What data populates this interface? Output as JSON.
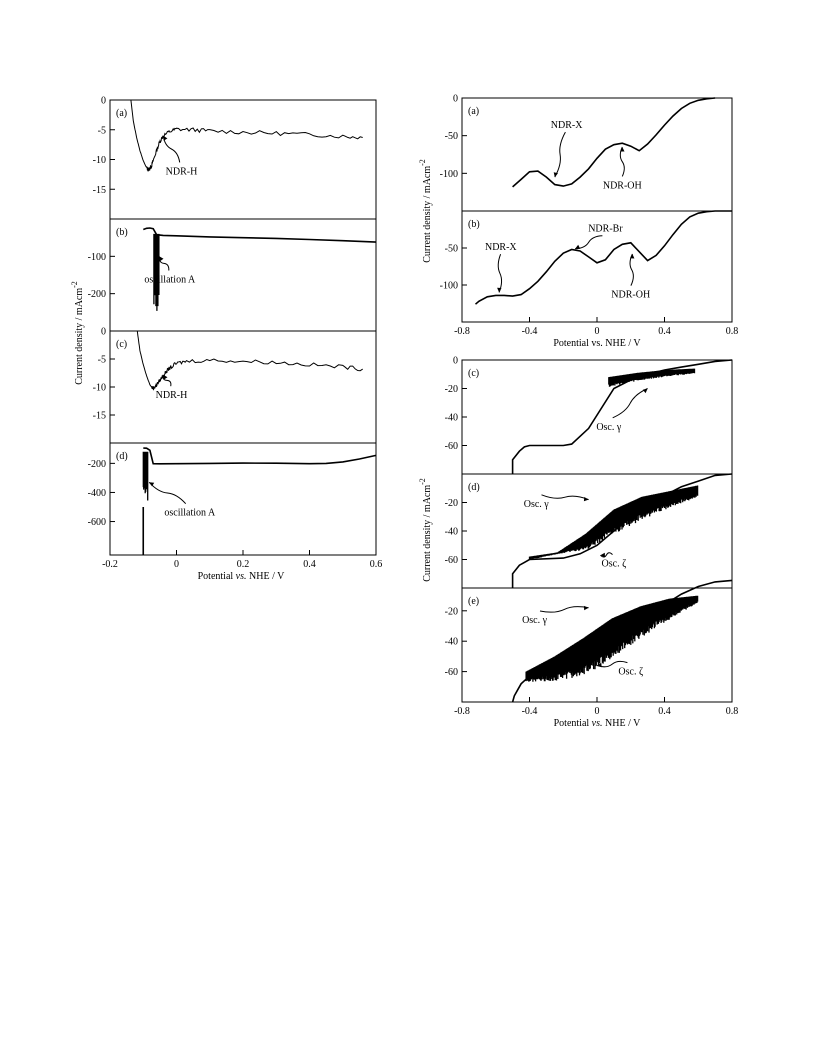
{
  "chart_data": [
    {
      "type": "line",
      "panel_label": "(a)",
      "x": [
        -0.137,
        -0.13,
        -0.12,
        -0.11,
        -0.1,
        -0.09,
        -0.085,
        -0.08,
        -0.075,
        -0.07,
        -0.06,
        -0.05,
        -0.04,
        -0.02,
        0.0,
        0.05,
        0.1,
        0.2,
        0.3,
        0.4,
        0.5,
        0.56
      ],
      "y": [
        0,
        -3.5,
        -6.3,
        -8.5,
        -10.2,
        -11.4,
        -11.7,
        -11.5,
        -11.0,
        -10.2,
        -8.5,
        -7.0,
        -6.0,
        -5.3,
        -4.9,
        -5.0,
        -5.2,
        -5.4,
        -5.6,
        -5.8,
        -6.1,
        -6.3
      ],
      "noise": 0.35,
      "xlim": [
        -0.2,
        0.6
      ],
      "ylim": [
        0,
        -20
      ],
      "yticks": [
        0,
        -5,
        -10,
        -15
      ],
      "annotations": [
        {
          "text": "NDR-H",
          "x": 0.015,
          "y": -12.5,
          "arrow_x": -0.04,
          "arrow_y": -6.0
        }
      ]
    },
    {
      "type": "line",
      "panel_label": "(b)",
      "x": [
        -0.1,
        -0.09,
        -0.08,
        -0.07,
        -0.06,
        -0.04,
        0.0,
        0.1,
        0.2,
        0.3,
        0.4,
        0.5,
        0.6
      ],
      "y": [
        -28,
        -25,
        -24,
        -26,
        -42,
        -44,
        -45,
        -48,
        -50,
        -52,
        -55,
        -58,
        -62
      ],
      "oscillation": {
        "x_from": -0.068,
        "x_to": -0.052,
        "y_from": -40,
        "y_to": -255,
        "density": 0.003
      },
      "xlim": [
        -0.2,
        0.6
      ],
      "ylim": [
        0,
        -300
      ],
      "yticks": [
        -100,
        -200
      ],
      "annotations": [
        {
          "text": "oscillation A",
          "x": -0.02,
          "y": -170,
          "arrow_x": -0.052,
          "arrow_y": -100
        }
      ]
    },
    {
      "type": "line",
      "panel_label": "(c)",
      "x": [
        -0.118,
        -0.11,
        -0.1,
        -0.09,
        -0.08,
        -0.075,
        -0.07,
        -0.065,
        -0.06,
        -0.05,
        -0.04,
        -0.03,
        -0.02,
        0.0,
        0.03,
        0.1,
        0.2,
        0.3,
        0.4,
        0.5,
        0.56
      ],
      "y": [
        0,
        -3.5,
        -6.0,
        -8.0,
        -9.6,
        -10.0,
        -10.2,
        -10.0,
        -9.6,
        -8.8,
        -8.0,
        -7.2,
        -6.6,
        -5.8,
        -5.4,
        -5.2,
        -5.4,
        -5.6,
        -6.0,
        -6.4,
        -6.8
      ],
      "noise": 0.35,
      "xlim": [
        -0.2,
        0.6
      ],
      "ylim": [
        0,
        -20
      ],
      "yticks": [
        0,
        -5,
        -10,
        -15
      ],
      "annotations": [
        {
          "text": "NDR-H",
          "x": -0.015,
          "y": -12.0,
          "arrow_x": -0.04,
          "arrow_y": -7.8
        }
      ]
    },
    {
      "type": "line",
      "panel_label": "(d)",
      "x": [
        -0.1,
        -0.09,
        -0.08,
        -0.07,
        -0.05,
        0.0,
        0.1,
        0.2,
        0.3,
        0.4,
        0.45,
        0.5,
        0.55,
        0.6
      ],
      "y": [
        -95,
        -96,
        -110,
        -202,
        -203,
        -202,
        -200,
        -198,
        -199,
        -202,
        -200,
        -190,
        -170,
        -145
      ],
      "oscillation": {
        "x_from": -0.1,
        "x_to": -0.085,
        "y_from": -120,
        "y_to": -500,
        "density": 0.0015
      },
      "baseline_drop": {
        "x": -0.1,
        "y_from": -500,
        "y_to": -830
      },
      "xlim": [
        -0.2,
        0.6
      ],
      "ylim": [
        -60,
        -830
      ],
      "yticks": [
        -200,
        -400,
        -600
      ],
      "xticks": [
        -0.2,
        0,
        0.2,
        0.4,
        0.6
      ],
      "annotations": [
        {
          "text": "oscillation A",
          "x": 0.04,
          "y": -560,
          "arrow_x": -0.082,
          "arrow_y": -330
        }
      ]
    },
    {
      "type": "line",
      "panel_label": "(a)",
      "x": [
        -0.5,
        -0.45,
        -0.4,
        -0.35,
        -0.3,
        -0.25,
        -0.2,
        -0.15,
        -0.1,
        -0.05,
        0.0,
        0.05,
        0.1,
        0.15,
        0.2,
        0.25,
        0.3,
        0.35,
        0.4,
        0.45,
        0.5,
        0.55,
        0.6,
        0.65,
        0.7
      ],
      "y": [
        -118,
        -108,
        -98,
        -97,
        -105,
        -115,
        -117,
        -114,
        -105,
        -94,
        -80,
        -68,
        -62,
        -60,
        -64,
        -70,
        -61,
        -49,
        -36,
        -24,
        -14,
        -7,
        -3,
        -1,
        0
      ],
      "xlim": [
        -0.8,
        0.8
      ],
      "ylim": [
        0,
        -150
      ],
      "yticks": [
        0,
        -50,
        -100
      ],
      "annotations": [
        {
          "text": "NDR-X",
          "x": -0.18,
          "y": -40,
          "arrow_x": -0.25,
          "arrow_y": -105
        },
        {
          "text": "NDR-OH",
          "x": 0.15,
          "y": -120,
          "arrow_x": 0.15,
          "arrow_y": -65
        }
      ]
    },
    {
      "type": "line",
      "panel_label": "(b)",
      "x": [
        -0.72,
        -0.7,
        -0.65,
        -0.6,
        -0.55,
        -0.5,
        -0.45,
        -0.4,
        -0.35,
        -0.3,
        -0.25,
        -0.2,
        -0.15,
        -0.1,
        -0.05,
        0.0,
        0.05,
        0.1,
        0.15,
        0.2,
        0.25,
        0.3,
        0.35,
        0.4,
        0.45,
        0.5,
        0.55,
        0.6,
        0.65,
        0.7,
        0.75,
        0.8
      ],
      "y": [
        -126,
        -122,
        -116,
        -114,
        -114,
        -115,
        -113,
        -105,
        -95,
        -82,
        -68,
        -57,
        -52,
        -54,
        -62,
        -70,
        -66,
        -52,
        -45,
        -43,
        -55,
        -67,
        -60,
        -47,
        -32,
        -18,
        -8,
        -3,
        -1,
        0,
        0,
        0
      ],
      "xlim": [
        -0.8,
        0.8
      ],
      "ylim": [
        0,
        -150
      ],
      "yticks": [
        -50,
        -100
      ],
      "xticks": [
        -0.8,
        -0.4,
        0,
        0.4,
        0.8
      ],
      "annotations": [
        {
          "text": "NDR-X",
          "x": -0.57,
          "y": -53,
          "arrow_x": -0.58,
          "arrow_y": -110
        },
        {
          "text": "NDR-Br",
          "x": 0.05,
          "y": -28,
          "arrow_x": -0.13,
          "arrow_y": -51
        },
        {
          "text": "NDR-OH",
          "x": 0.2,
          "y": -117,
          "arrow_x": 0.21,
          "arrow_y": -58
        }
      ]
    },
    {
      "type": "line",
      "panel_label": "(c)",
      "x": [
        -0.5,
        -0.5,
        -0.48,
        -0.46,
        -0.43,
        -0.4,
        -0.2,
        -0.15,
        -0.05,
        0.1,
        0.2,
        0.3,
        0.4,
        0.5,
        0.6,
        0.7,
        0.8
      ],
      "y": [
        -80,
        -70,
        -67,
        -64,
        -61,
        -60,
        -60,
        -59,
        -48,
        -20,
        -14,
        -10,
        -7,
        -5,
        -3,
        -1,
        0
      ],
      "oscillation": {
        "x_from": 0.07,
        "x_to": 0.58,
        "lower": [
          -18,
          -14,
          -11,
          -9
        ],
        "upper": [
          -12,
          -9,
          -7,
          -6
        ],
        "density": 0.004
      },
      "xlim": [
        -0.8,
        0.8
      ],
      "ylim": [
        0,
        -80
      ],
      "yticks": [
        0,
        -20,
        -40,
        -60
      ],
      "annotations": [
        {
          "text": "Osc. γ",
          "x": 0.07,
          "y": -49,
          "arrow_x": 0.3,
          "arrow_y": -20
        }
      ]
    },
    {
      "type": "line",
      "panel_label": "(d)",
      "x": [
        -0.5,
        -0.5,
        -0.48,
        -0.46,
        -0.43,
        -0.4,
        -0.2,
        -0.1,
        0.0,
        0.1,
        0.2,
        0.3,
        0.4,
        0.5,
        0.6,
        0.7,
        0.8
      ],
      "y": [
        -80,
        -70,
        -67,
        -64,
        -62,
        -60,
        -59,
        -56,
        -50,
        -40,
        -30,
        -22,
        -15,
        -9,
        -5,
        -1,
        0
      ],
      "oscillation": {
        "x_from": -0.4,
        "x_to": 0.6,
        "lower": [
          -60,
          -56,
          -52,
          -40,
          -30,
          -22,
          -15
        ],
        "upper": [
          -58,
          -55,
          -42,
          -25,
          -16,
          -12,
          -8
        ],
        "density": 0.004
      },
      "xlim": [
        -0.8,
        0.8
      ],
      "ylim": [
        0,
        -80
      ],
      "yticks": [
        -20,
        -40,
        -60
      ],
      "annotations": [
        {
          "text": "Osc. γ",
          "x": -0.36,
          "y": -23,
          "arrow_x": -0.05,
          "arrow_y": -18
        },
        {
          "text": "Osc. ζ",
          "x": 0.1,
          "y": -65,
          "arrow_x": 0.02,
          "arrow_y": -57
        }
      ]
    },
    {
      "type": "line",
      "panel_label": "(e)",
      "x": [
        -0.5,
        -0.49,
        -0.47,
        -0.45,
        -0.42,
        -0.4,
        -0.2,
        0.0,
        0.2,
        0.3,
        0.4,
        0.5,
        0.6,
        0.7,
        0.8
      ],
      "y": [
        -80,
        -76,
        -72,
        -68,
        -65,
        -63,
        -60,
        -52,
        -35,
        -25,
        -16,
        -9,
        -4,
        -1,
        0
      ],
      "oscillation": {
        "x_from": -0.42,
        "x_to": 0.6,
        "lower": [
          -66,
          -64,
          -60,
          -48,
          -35,
          -24,
          -14
        ],
        "upper": [
          -60,
          -50,
          -38,
          -25,
          -17,
          -12,
          -10
        ],
        "density": 0.004
      },
      "xlim": [
        -0.8,
        0.8
      ],
      "ylim": [
        -5,
        -80
      ],
      "yticks": [
        -20,
        -40,
        -60
      ],
      "xticks": [
        -0.8,
        -0.4,
        0,
        0.4,
        0.8
      ],
      "annotations": [
        {
          "text": "Osc. γ",
          "x": -0.37,
          "y": -28,
          "arrow_x": -0.05,
          "arrow_y": -18
        },
        {
          "text": "Osc. ζ",
          "x": 0.2,
          "y": -62,
          "arrow_x": 0.0,
          "arrow_y": -56
        }
      ]
    }
  ],
  "figure_text": {
    "left_xlabel_prefix": "Potential ",
    "left_xlabel_vs": "vs.",
    "left_xlabel_suffix": " NHE / V",
    "left_ylabel": "Current density / mAcm",
    "left_ylabel_exp": "-2",
    "right_xlabel_mid": "Potential vs. NHE / V",
    "right_xlabel_prefix": "Potential ",
    "right_xlabel_vs": "vs.",
    "right_xlabel_suffix": " NHE / V",
    "right_ylabel_top": "Current density / mAcm",
    "right_ylabel_top_exp": "-2",
    "right_ylabel_bottom": "Current density / mAcm",
    "right_ylabel_bottom_exp": "-2"
  }
}
